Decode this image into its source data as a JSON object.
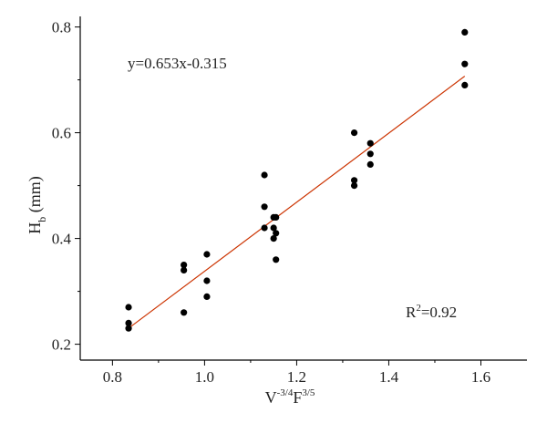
{
  "chart_data": {
    "type": "scatter",
    "xlabel": {
      "base": "V",
      "sup1": "-3/4",
      "mid": "F",
      "sup2": "3/5"
    },
    "ylabel": {
      "base": "H",
      "sub": "b",
      "rest": " (mm)"
    },
    "xlim": [
      0.73,
      1.7
    ],
    "ylim": [
      0.17,
      0.82
    ],
    "xticks": [
      0.8,
      1.0,
      1.2,
      1.4,
      1.6
    ],
    "yticks": [
      0.2,
      0.4,
      0.6,
      0.8
    ],
    "xtick_labels": [
      "0.8",
      "1.0",
      "1.2",
      "1.4",
      "1.6"
    ],
    "ytick_labels": [
      "0.2",
      "0.4",
      "0.6",
      "0.8"
    ],
    "grid": false,
    "series": [
      {
        "points": [
          [
            0.835,
            0.27
          ],
          [
            0.835,
            0.24
          ],
          [
            0.835,
            0.23
          ],
          [
            0.955,
            0.35
          ],
          [
            0.955,
            0.34
          ],
          [
            0.955,
            0.26
          ],
          [
            1.005,
            0.37
          ],
          [
            1.005,
            0.32
          ],
          [
            1.005,
            0.29
          ],
          [
            1.13,
            0.52
          ],
          [
            1.13,
            0.46
          ],
          [
            1.13,
            0.42
          ],
          [
            1.15,
            0.44
          ],
          [
            1.15,
            0.42
          ],
          [
            1.15,
            0.4
          ],
          [
            1.155,
            0.44
          ],
          [
            1.155,
            0.41
          ],
          [
            1.155,
            0.36
          ],
          [
            1.325,
            0.6
          ],
          [
            1.325,
            0.51
          ],
          [
            1.325,
            0.5
          ],
          [
            1.36,
            0.58
          ],
          [
            1.36,
            0.56
          ],
          [
            1.36,
            0.54
          ],
          [
            1.565,
            0.79
          ],
          [
            1.565,
            0.73
          ],
          [
            1.565,
            0.69
          ]
        ],
        "color": "#000000"
      }
    ],
    "fit_line": {
      "slope": 0.653,
      "intercept": -0.315,
      "x_range": [
        0.835,
        1.565
      ],
      "color": "#cc3300"
    },
    "annotations": {
      "equation": "y=0.653x-0.315",
      "r2_base": "R",
      "r2_sup": "2",
      "r2_rest": "=0.92"
    }
  }
}
